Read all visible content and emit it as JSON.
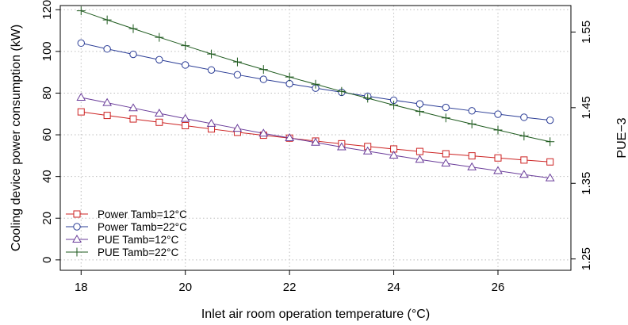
{
  "chart_data": {
    "type": "line",
    "xlabel": "Inlet air room operation temperature (°C)",
    "ylabel": "Cooling device power consumption (kW)",
    "y2label": "PUE−3",
    "xlim": [
      17.6,
      27.4
    ],
    "ylim": [
      -5,
      122
    ],
    "y2lim": [
      1.235,
      1.585
    ],
    "xticks": [
      18,
      20,
      22,
      24,
      26
    ],
    "xtick_labels": [
      "18",
      "20",
      "22",
      "24",
      "26"
    ],
    "yticks": [
      0,
      20,
      40,
      60,
      80,
      100,
      120
    ],
    "ytick_labels": [
      "0",
      "20",
      "40",
      "60",
      "80",
      "100",
      "120"
    ],
    "y2ticks": [
      1.25,
      1.35,
      1.45,
      1.55
    ],
    "y2tick_labels": [
      "1.25",
      "1.35",
      "1.45",
      "1.55"
    ],
    "grid": true,
    "legend_position": "bottom-left",
    "x": [
      18,
      18.5,
      19,
      19.5,
      20,
      20.5,
      21,
      21.5,
      22,
      22.5,
      23,
      23.5,
      24,
      24.5,
      25,
      25.5,
      26,
      26.5,
      27
    ],
    "series": [
      {
        "name": "Power Tamb=12°C",
        "axis": "left",
        "color": "#cc2222",
        "marker": "square",
        "values": [
          71,
          69.3,
          67.6,
          66,
          64.4,
          62.8,
          61.2,
          59.8,
          58.4,
          57,
          55.7,
          54.4,
          53.2,
          52,
          50.9,
          49.9,
          48.9,
          47.9,
          47
        ]
      },
      {
        "name": "Power Tamb=22°C",
        "axis": "left",
        "color": "#2b3d96",
        "marker": "circle",
        "values": [
          104,
          101.2,
          98.6,
          96,
          93.5,
          91.1,
          88.8,
          86.6,
          84.5,
          82.4,
          80.4,
          78.5,
          76.6,
          74.8,
          73.1,
          71.5,
          69.9,
          68.4,
          67
        ]
      },
      {
        "name": "PUE Tamb=12°C",
        "axis": "right",
        "color": "#6a3d9a",
        "marker": "triangle",
        "values": [
          1.4635,
          1.4565,
          1.4495,
          1.4425,
          1.4355,
          1.429,
          1.4225,
          1.416,
          1.41,
          1.404,
          1.398,
          1.3925,
          1.387,
          1.3815,
          1.3765,
          1.3715,
          1.3665,
          1.3615,
          1.357
        ]
      },
      {
        "name": "PUE Tamb=22°C",
        "axis": "right",
        "color": "#1e5a1e",
        "marker": "plus",
        "values": [
          1.578,
          1.566,
          1.5545,
          1.543,
          1.532,
          1.521,
          1.5105,
          1.5005,
          1.4905,
          1.481,
          1.4715,
          1.4625,
          1.4535,
          1.445,
          1.4365,
          1.4285,
          1.4205,
          1.4125,
          1.405
        ]
      }
    ]
  }
}
